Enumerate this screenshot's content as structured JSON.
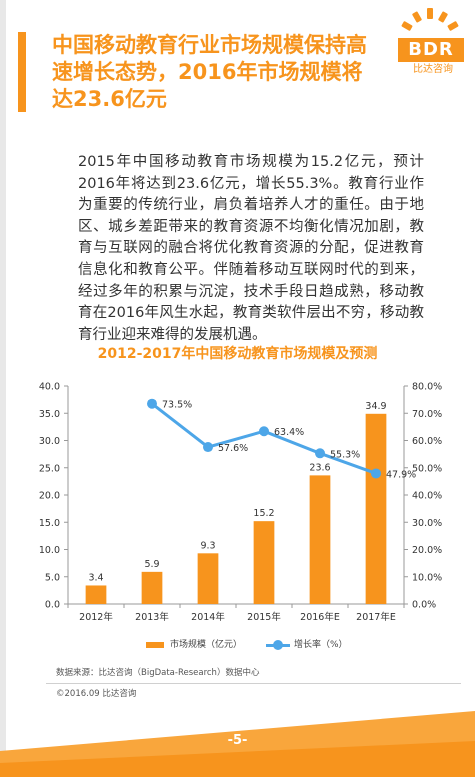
{
  "header": {
    "title": "中国移动教育行业市场规模保持高速增长态势，2016年市场规模将达23.6亿元",
    "logo_text": "BDR",
    "logo_subtitle": "比达咨询"
  },
  "body_text": "2015年中国移动教育市场规模为15.2亿元，预计2016年将达到23.6亿元，增长55.3%。教育行业作为重要的传统行业，肩负着培养人才的重任。由于地区、城乡差距带来的教育资源不均衡化情况加剧，教育与互联网的融合将优化教育资源的分配，促进教育信息化和教育公平。伴随着移动互联网时代的到来，经过多年的积累与沉淀，技术手段日趋成熟，移动教育在2016年风生水起，教育类软件层出不穷，移动教育行业迎来难得的发展机遇。",
  "chart_data": {
    "type": "bar",
    "title": "2012-2017年中国移动教育市场规模及预测",
    "categories": [
      "2012年",
      "2013年",
      "2014年",
      "2015年",
      "2016年E",
      "2017年E"
    ],
    "series": [
      {
        "name": "市场规模（亿元）",
        "type": "bar",
        "axis": "left",
        "values": [
          3.4,
          5.9,
          9.3,
          15.2,
          23.6,
          34.9
        ],
        "labels": [
          "3.4",
          "5.9",
          "9.3",
          "15.2",
          "23.6",
          "34.9"
        ]
      },
      {
        "name": "增长率（%）",
        "type": "line",
        "axis": "right",
        "values": [
          null,
          73.5,
          57.6,
          63.4,
          55.3,
          47.9
        ],
        "labels": [
          "",
          "73.5%",
          "57.6%",
          "63.4%",
          "55.3%",
          "47.9%"
        ]
      }
    ],
    "left_axis": {
      "ylim": [
        0,
        40
      ],
      "ticks": [
        "0.0",
        "5.0",
        "10.0",
        "15.0",
        "20.0",
        "25.0",
        "30.0",
        "35.0",
        "40.0"
      ]
    },
    "right_axis": {
      "ylim": [
        0,
        80
      ],
      "ticks": [
        "0.0%",
        "10.0%",
        "20.0%",
        "30.0%",
        "40.0%",
        "50.0%",
        "60.0%",
        "70.0%",
        "80.0%"
      ]
    },
    "grid": false,
    "legend_position": "bottom",
    "colors": {
      "bar": "#f7941d",
      "line": "#4da6e8",
      "axis": "#999999",
      "text": "#333333"
    }
  },
  "source_note": "数据来源：比达咨询（BigData-Research）数据中心",
  "copyright": "©2016.09 比达咨询",
  "page_number": "-5-",
  "colors": {
    "brand_orange": "#f7941d",
    "footer_orange": "#f9a63c"
  }
}
